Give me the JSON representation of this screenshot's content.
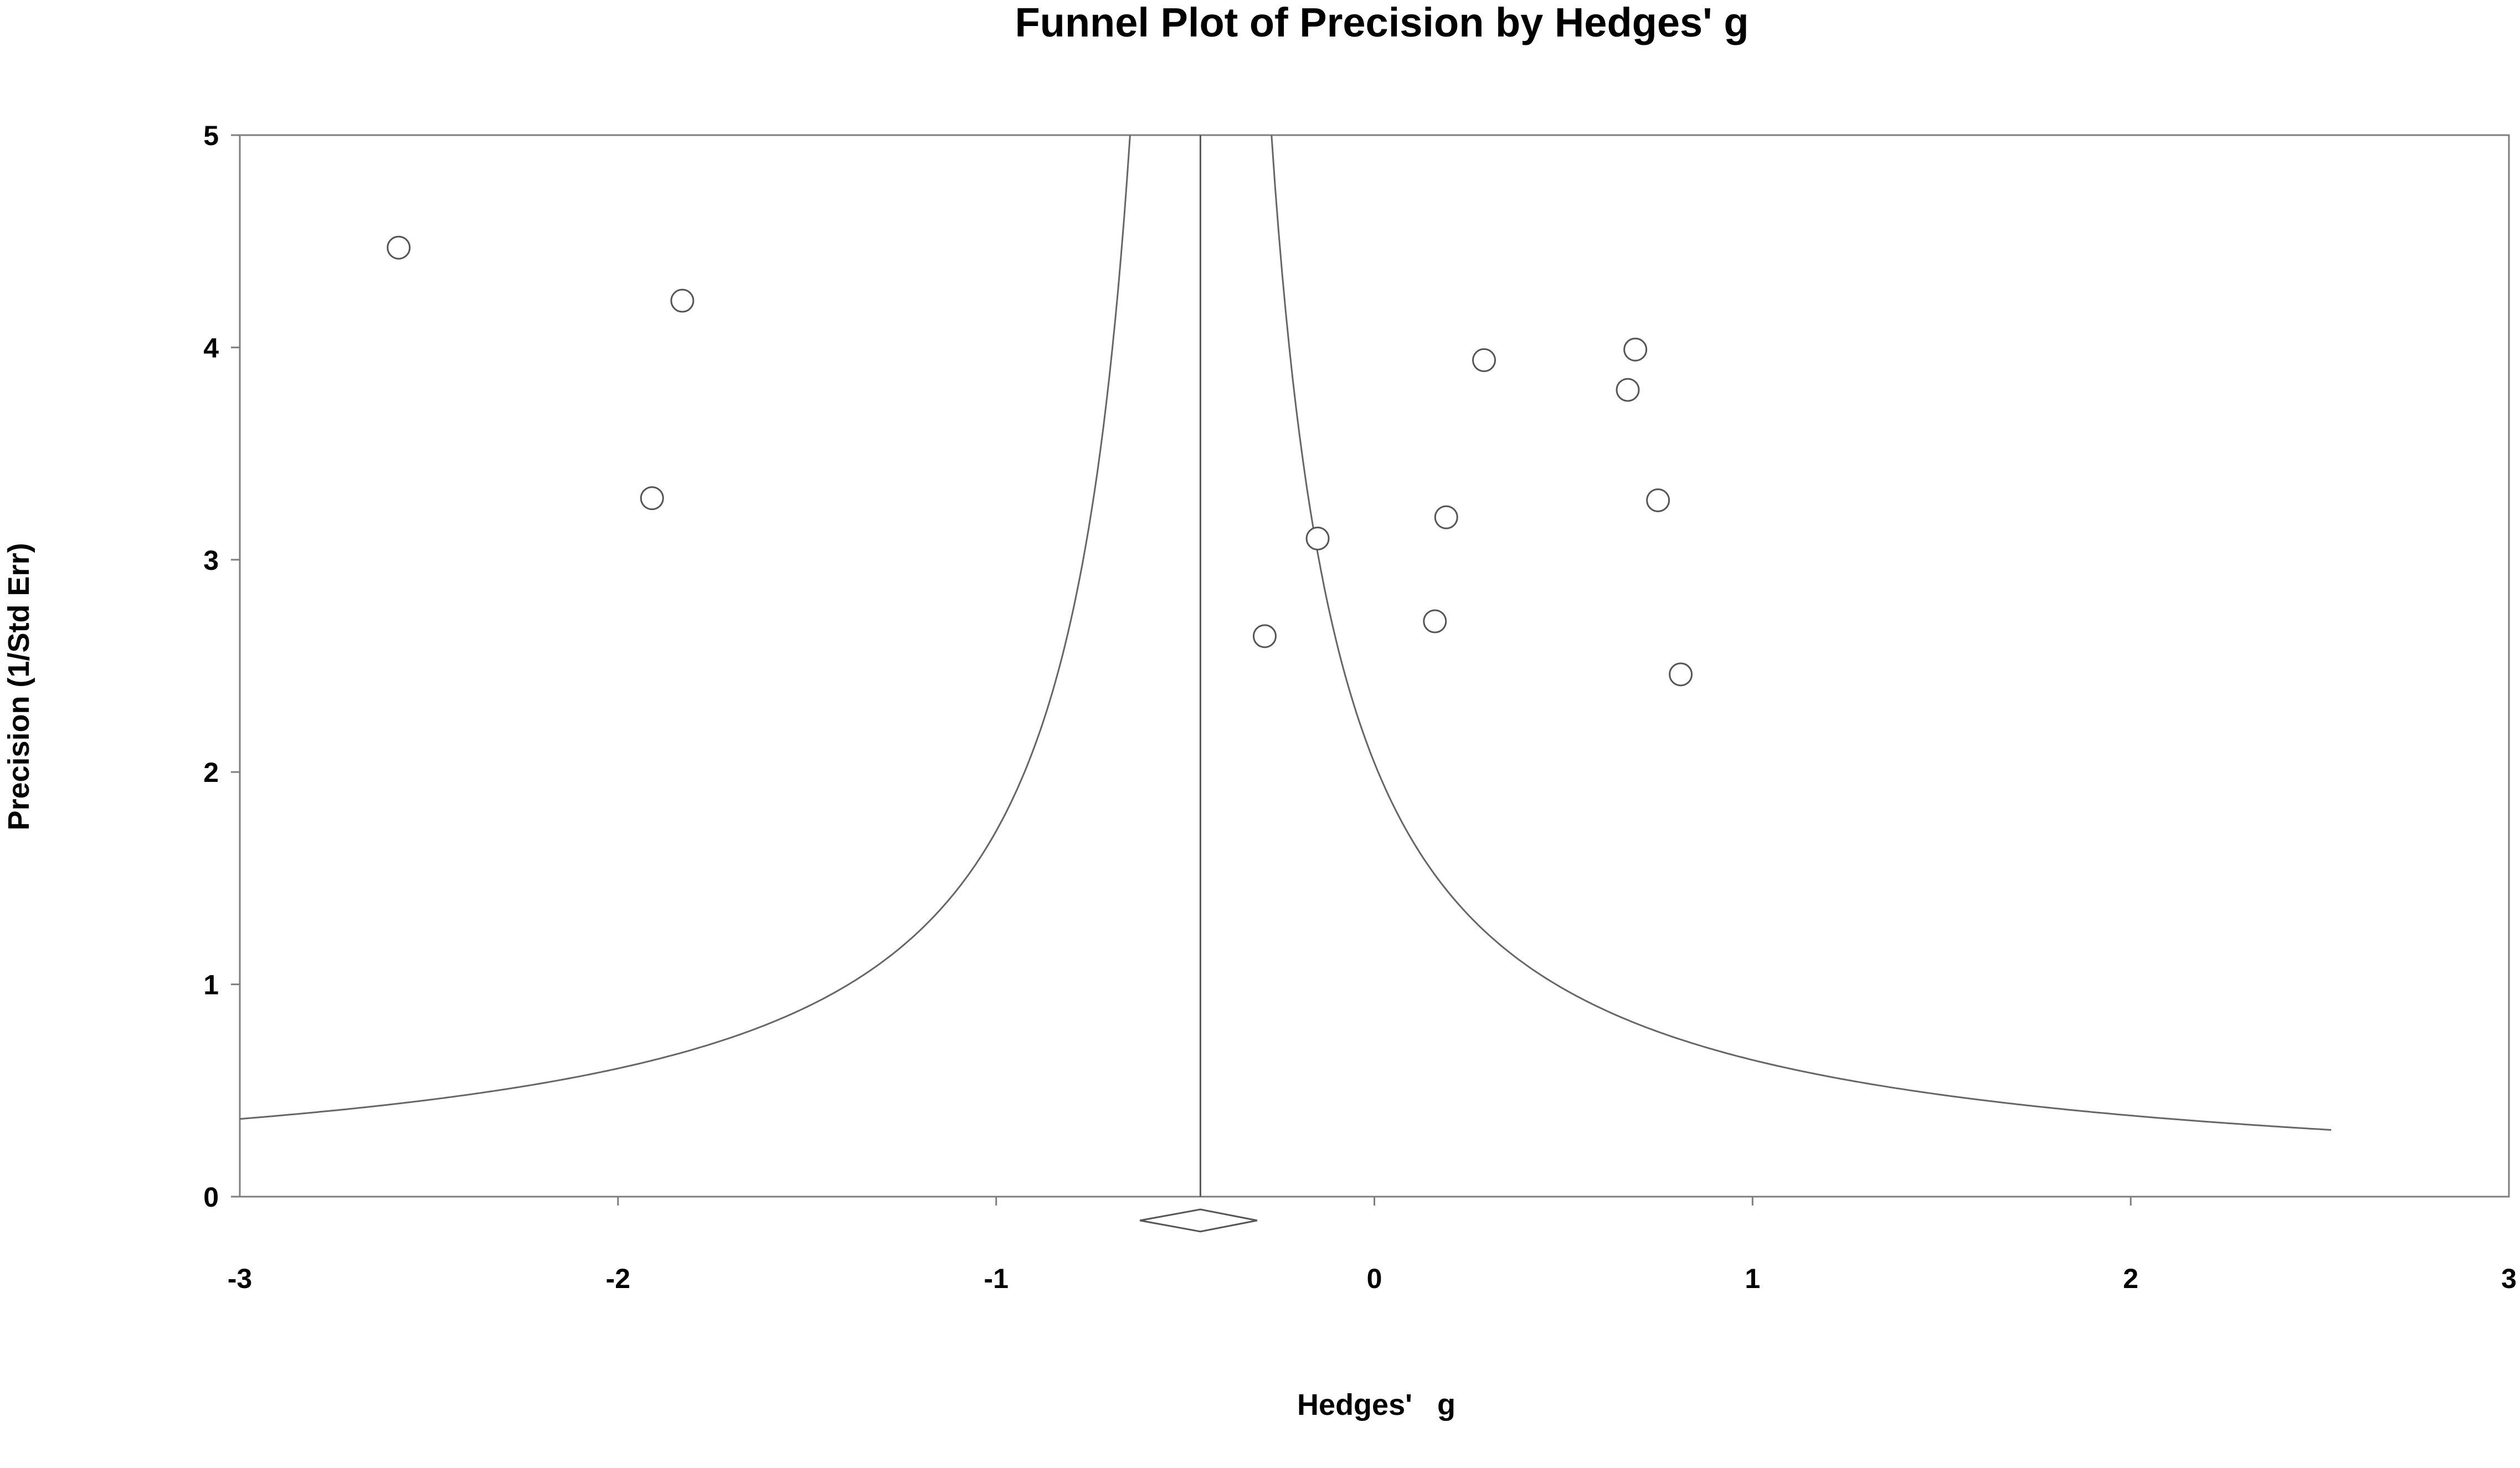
{
  "chart_data": {
    "type": "scatter",
    "title": "Funnel Plot of Precision by Hedges'   g",
    "xlabel": "Hedges'   g",
    "ylabel": "Precision (1/Std Err)",
    "xlim": [
      -3,
      3
    ],
    "ylim": [
      0,
      5
    ],
    "x_ticks": [
      "-3",
      "-2",
      "-1",
      "0",
      "1",
      "2",
      "3"
    ],
    "y_ticks": [
      "0",
      "1",
      "2",
      "3",
      "4",
      "5"
    ],
    "grid": false,
    "legend": "none",
    "summary_effect": -0.46,
    "summary_ci": [
      -0.62,
      -0.31
    ],
    "funnel_limits": {
      "left_at_precision_1": -1.39,
      "right_at_precision_1": 0.48,
      "x_range": [
        -3,
        2.53
      ]
    },
    "points": [
      {
        "x": -2.58,
        "y": 4.47
      },
      {
        "x": -1.83,
        "y": 4.22
      },
      {
        "x": -1.91,
        "y": 3.29
      },
      {
        "x": -0.29,
        "y": 2.64
      },
      {
        "x": -0.15,
        "y": 3.1
      },
      {
        "x": 0.16,
        "y": 2.71
      },
      {
        "x": 0.19,
        "y": 3.2
      },
      {
        "x": 0.29,
        "y": 3.94
      },
      {
        "x": 0.67,
        "y": 3.8
      },
      {
        "x": 0.69,
        "y": 3.99
      },
      {
        "x": 0.75,
        "y": 3.28
      },
      {
        "x": 0.81,
        "y": 2.46
      }
    ]
  }
}
